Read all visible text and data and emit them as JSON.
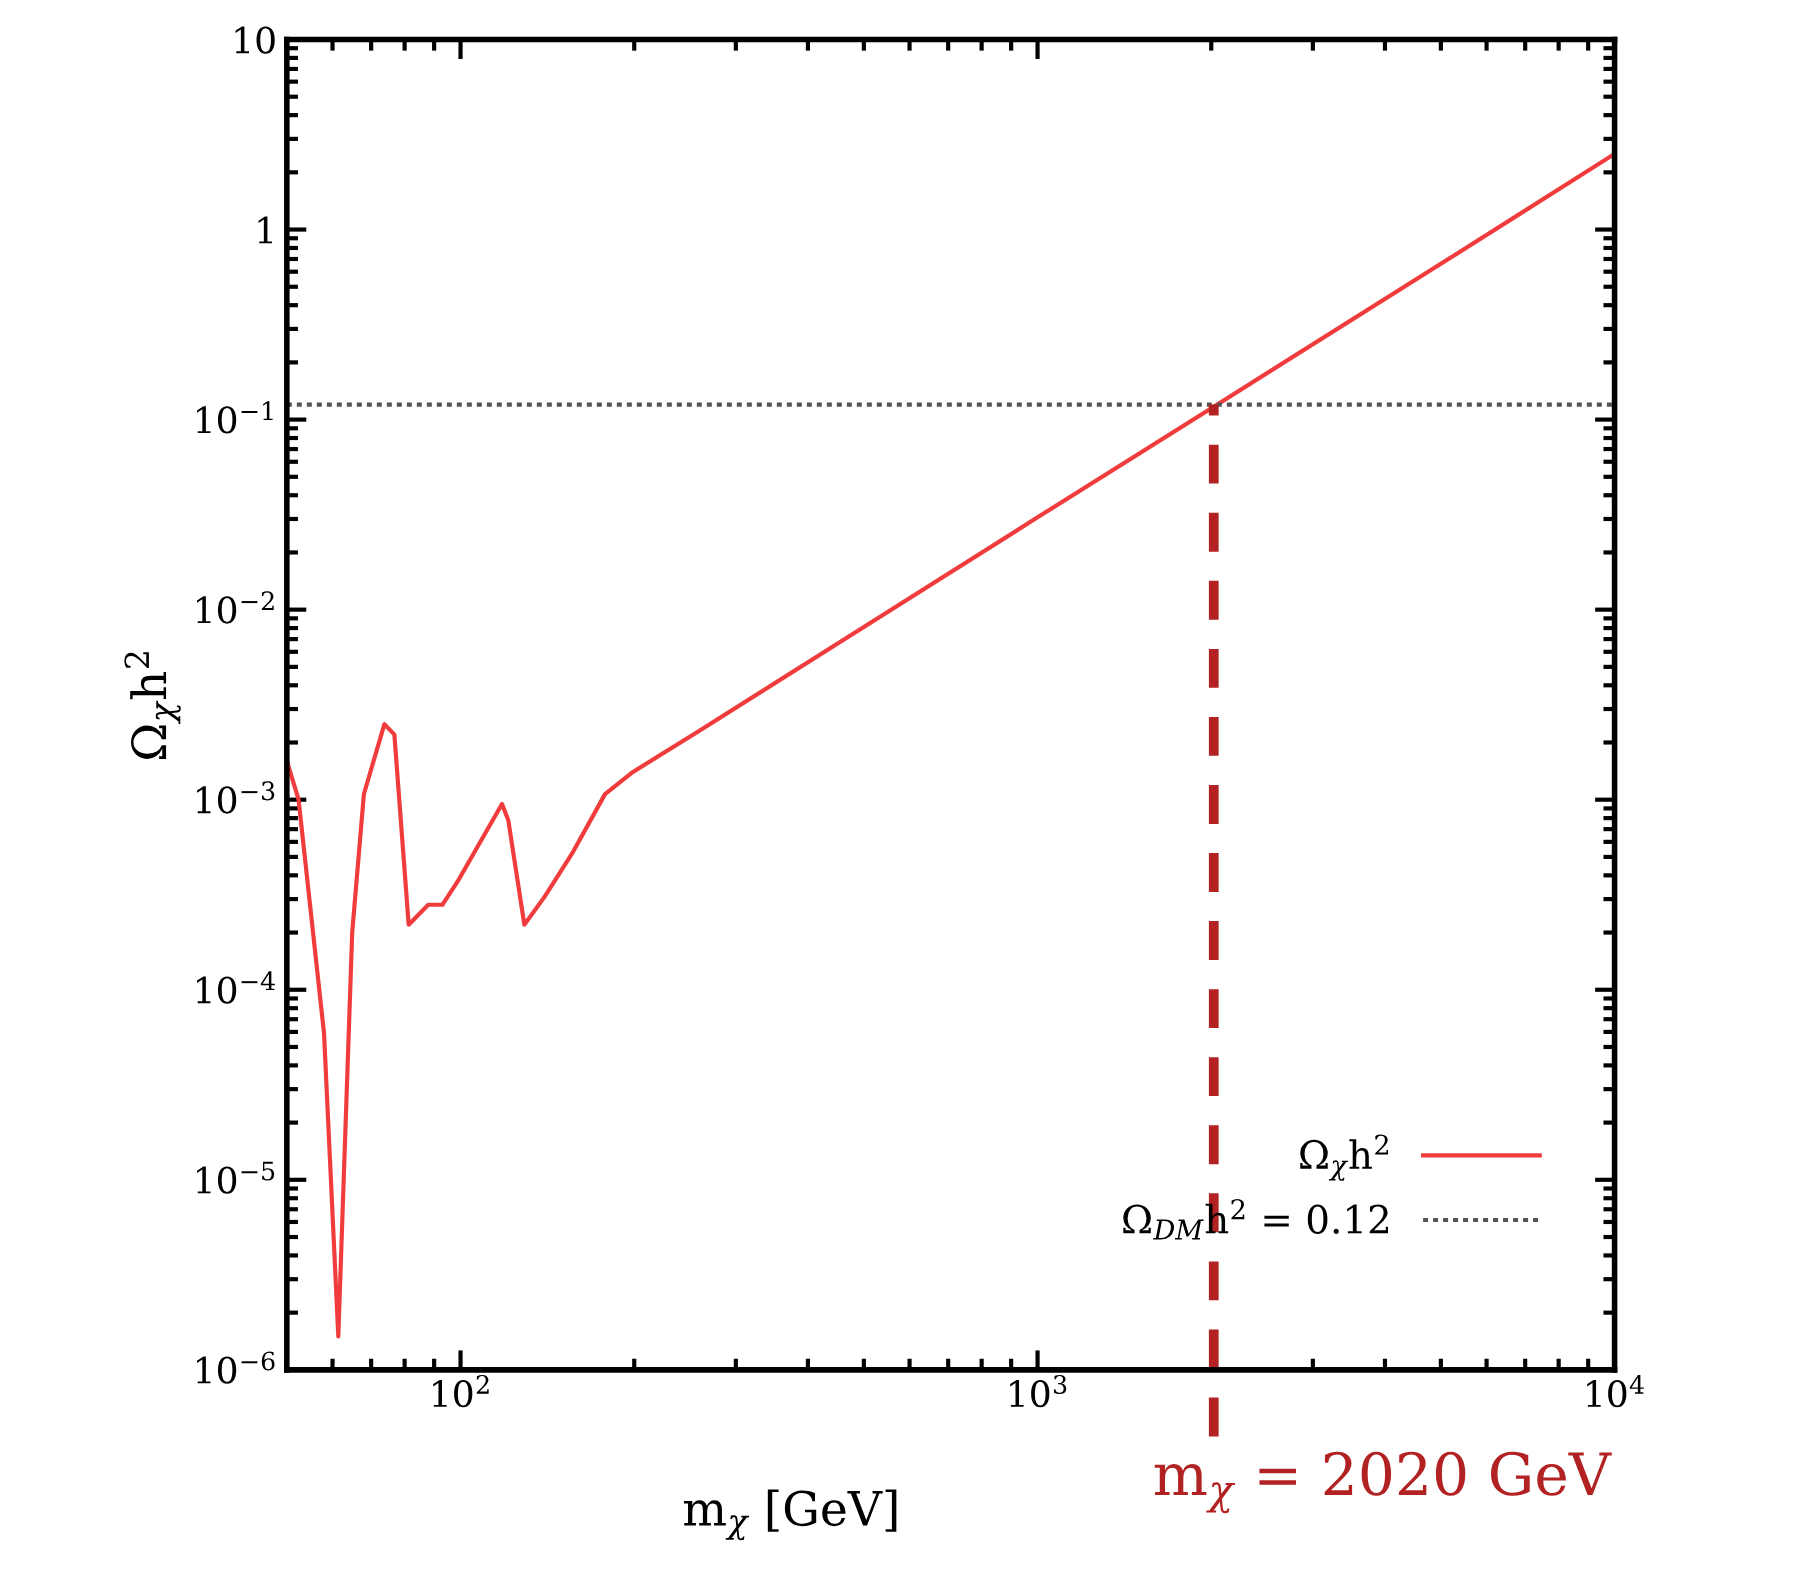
{
  "chart_data": {
    "type": "line",
    "xlabel": "m$_{χ}$ [GeV]",
    "ylabel": "Ω$_{χ}$h$^{2}$",
    "log": "xy",
    "xlim": [
      50,
      10000
    ],
    "ylim": [
      1e-06,
      10
    ],
    "xticks": [
      {
        "value": 100,
        "label": "10$^{2}$"
      },
      {
        "value": 1000,
        "label": "10$^{3}$"
      },
      {
        "value": 10000,
        "label": "10$^{4}$"
      }
    ],
    "yticks": [
      {
        "value": 1e-06,
        "label": "10$^{−6}$"
      },
      {
        "value": 1e-05,
        "label": "10$^{−5}$"
      },
      {
        "value": 0.0001,
        "label": "10$^{−4}$"
      },
      {
        "value": 0.001,
        "label": "10$^{−3}$"
      },
      {
        "value": 0.01,
        "label": "10$^{−2}$"
      },
      {
        "value": 0.1,
        "label": "10$^{−1}$"
      },
      1,
      10
    ],
    "series": [
      {
        "name": "Ω$_{χ}$h$^{2}$",
        "color": "#f03c3c",
        "x": [
          50,
          52.4,
          58,
          61.4,
          64.9,
          68,
          73.8,
          76.8,
          81.3,
          87.9,
          93,
          99.3,
          118,
          121,
          129,
          140,
          156,
          178,
          199,
          259,
          500,
          1000,
          2020,
          5000,
          10000
        ],
        "values": [
          0.0016,
          0.001,
          5.9e-05,
          1.5e-06,
          0.0002,
          0.00107,
          0.0025,
          0.0022,
          0.00022,
          0.00028,
          0.00028,
          0.00038,
          0.00095,
          0.00078,
          0.00022,
          0.00031,
          0.00052,
          0.00107,
          0.0014,
          0.0023,
          0.0081,
          0.0306,
          0.117,
          0.66,
          2.5
        ]
      }
    ],
    "ref_lines": [
      {
        "axis": "y",
        "value": 0.12,
        "label": "Ω$_{DM}$h$^{2}$ = 0.12",
        "color": "#555555",
        "line_style": "dotted"
      },
      {
        "axis": "x",
        "value": 2020,
        "label": "m$_{χ}$ = 2020 GeV",
        "color": "#b22222",
        "line_style": "dashed"
      }
    ],
    "legend": "bottom right",
    "grid": false
  }
}
